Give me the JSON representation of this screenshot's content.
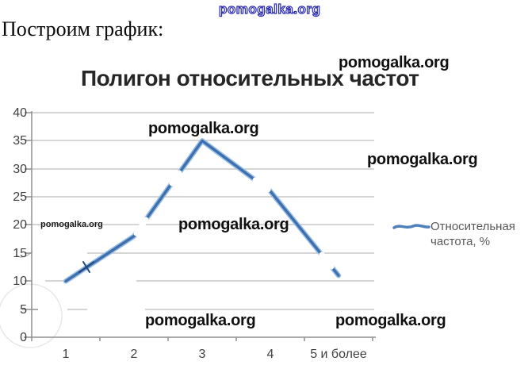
{
  "watermark_text": "pomogalka.org",
  "page": {
    "intro_text": "Построим график:"
  },
  "chart_data": {
    "type": "line",
    "title": "Полигон относительных частот",
    "categories": [
      "1",
      "2",
      "3",
      "4",
      "5 и более"
    ],
    "series": [
      {
        "name": "Относительная частота, %",
        "color": "#3e6fae",
        "values": [
          10,
          18,
          35,
          26,
          11
        ]
      }
    ],
    "xlabel": "",
    "ylabel": "",
    "ylim": [
      0,
      40
    ],
    "ytick_step": 5,
    "yticks": [
      "40",
      "35",
      "30",
      "25",
      "20",
      "15",
      "10",
      "5",
      "0"
    ],
    "grid": "horizontal-only",
    "legend_position": "right",
    "legend_lines": [
      "Относительная",
      "частота, %"
    ]
  },
  "colors": {
    "line": "#4f81bd",
    "line_halo": "#9cc0e4",
    "gridline": "#ababab",
    "axis": "#8f8f8f",
    "watermark_outline": "#2c2cb0"
  }
}
